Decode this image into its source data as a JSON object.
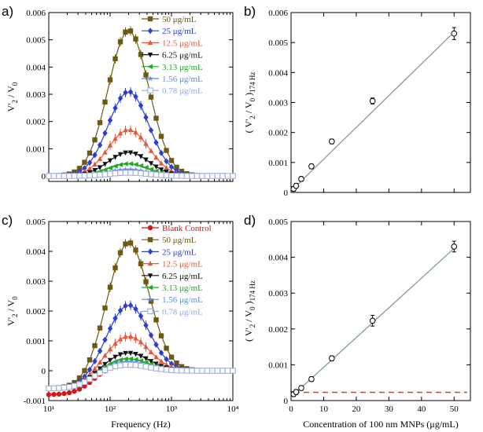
{
  "chart_data": [
    {
      "panel": "a)",
      "type": "line",
      "xscale": "log",
      "xlim": [
        10,
        10000
      ],
      "ylim": [
        -0.0002,
        0.006
      ],
      "yticks": [
        "0",
        "0.001",
        "0.002",
        "0.003",
        "0.004",
        "0.005",
        "0.006"
      ],
      "xticks": [],
      "ylabel": "V'2 / V0",
      "xlabel": "",
      "legend_position": "top-right",
      "curve_model": {
        "center_hz": 200,
        "log_sigma": 0.33,
        "start_offset": 0
      },
      "series": [
        {
          "name": "50 μg/mL",
          "peak": 0.00535,
          "marker": "square-filled",
          "color": "#6b5a10"
        },
        {
          "name": "25 μg/mL",
          "peak": 0.0031,
          "marker": "diamond-filled",
          "color": "#2a3fd0"
        },
        {
          "name": "12.5 μg/mL",
          "peak": 0.0017,
          "marker": "triangle-up",
          "color": "#e8553a"
        },
        {
          "name": "6.25 μg/mL",
          "peak": 0.00087,
          "marker": "triangle-down",
          "color": "#111111"
        },
        {
          "name": "3.13 μg/mL",
          "peak": 0.00045,
          "marker": "triangle-left",
          "color": "#22aa22"
        },
        {
          "name": "1.56 μg/mL",
          "peak": 0.00024,
          "marker": "star",
          "color": "#5a8ee0"
        },
        {
          "name": "0.78 μg/mL",
          "peak": 0.00012,
          "marker": "square-open",
          "color": "#9aa8e0"
        }
      ]
    },
    {
      "panel": "b)",
      "type": "scatter",
      "xlim": [
        0,
        55
      ],
      "ylim": [
        0,
        0.006
      ],
      "yticks": [
        "0",
        "0.001",
        "0.002",
        "0.003",
        "0.004",
        "0.005",
        "0.006"
      ],
      "xticks": [],
      "ylabel": "( V'2 / V0 )174 Hz",
      "xlabel": "",
      "fit_line": {
        "x": [
          0,
          50
        ],
        "y": [
          5e-05,
          0.00535
        ]
      },
      "points": {
        "x": [
          0.78,
          1.56,
          3.13,
          6.25,
          12.5,
          25,
          50
        ],
        "y": [
          0.00012,
          0.00022,
          0.00045,
          0.00087,
          0.0017,
          0.00305,
          0.0053
        ]
      },
      "errors": [
        5e-05,
        5e-05,
        5e-05,
        5e-05,
        5e-05,
        0.0001,
        0.0002
      ]
    },
    {
      "panel": "c)",
      "type": "line",
      "xscale": "log",
      "xlim": [
        10,
        10000
      ],
      "ylim": [
        -0.001,
        0.005
      ],
      "yticks": [
        "-0.001",
        "0",
        "0.001",
        "0.002",
        "0.003",
        "0.004",
        "0.005"
      ],
      "xticks": [
        "10¹",
        "10²",
        "10³",
        "10⁴"
      ],
      "ylabel": "V'2 / V0",
      "xlabel": "Frequency (Hz)",
      "legend_position": "top-right",
      "curve_model": {
        "center_hz": 200,
        "log_sigma": 0.33,
        "start_offset": -0.0006
      },
      "series": [
        {
          "name": "Blank Control",
          "peak": 0.0002,
          "marker": "circle-filled",
          "color": "#d01818",
          "blank": true
        },
        {
          "name": "50 μg/mL",
          "peak": 0.0043,
          "marker": "square-filled",
          "color": "#6b5a10"
        },
        {
          "name": "25 μg/mL",
          "peak": 0.0022,
          "marker": "diamond-filled",
          "color": "#2a3fd0"
        },
        {
          "name": "12.5 μg/mL",
          "peak": 0.00115,
          "marker": "triangle-up",
          "color": "#e8553a"
        },
        {
          "name": "6.25 μg/mL",
          "peak": 0.0006,
          "marker": "triangle-down",
          "color": "#111111"
        },
        {
          "name": "3.13 μg/mL",
          "peak": 0.0004,
          "marker": "triangle-left",
          "color": "#22aa22"
        },
        {
          "name": "1.56 μg/mL",
          "peak": 0.0003,
          "marker": "star",
          "color": "#5a8ee0"
        },
        {
          "name": "0.78 μg/mL",
          "peak": 0.0002,
          "marker": "square-open",
          "color": "#9aa8e0"
        }
      ]
    },
    {
      "panel": "d)",
      "type": "scatter",
      "xlim": [
        0,
        55
      ],
      "ylim": [
        0,
        0.005
      ],
      "yticks": [
        "0",
        "0.001",
        "0.002",
        "0.003",
        "0.004",
        "0.005"
      ],
      "xticks": [
        "0",
        "10",
        "20",
        "30",
        "40",
        "50"
      ],
      "ylabel": "( V'2 / V0 )174 Hz",
      "xlabel": "Concentration of 100 nm MNPs (μg/mL)",
      "fit_line": {
        "x": [
          0,
          50
        ],
        "y": [
          0.0001,
          0.00425
        ]
      },
      "blank_level": 0.00023,
      "points": {
        "x": [
          0.78,
          1.56,
          3.13,
          6.25,
          12.5,
          25,
          50
        ],
        "y": [
          0.00018,
          0.00024,
          0.00035,
          0.0006,
          0.00118,
          0.00223,
          0.0043
        ]
      },
      "errors": [
        5e-05,
        5e-05,
        5e-05,
        5e-05,
        6e-05,
        0.00015,
        0.00015
      ]
    }
  ]
}
